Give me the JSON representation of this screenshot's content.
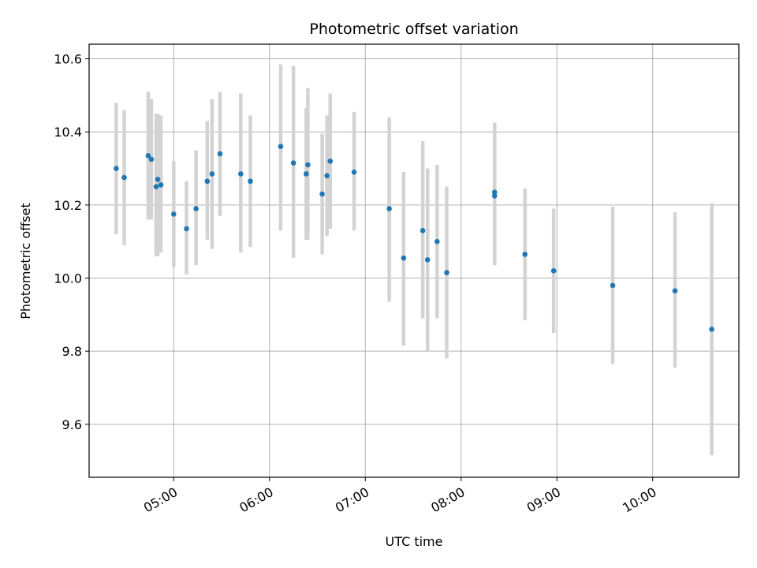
{
  "chart_data": {
    "type": "scatter",
    "title": "Photometric offset variation",
    "xlabel": "UTC time",
    "ylabel": "Photometric offset",
    "xlim": [
      "04:07",
      "10:54"
    ],
    "ylim": [
      9.455,
      10.64
    ],
    "xticks": [
      "05:00",
      "06:00",
      "07:00",
      "08:00",
      "09:00",
      "10:00"
    ],
    "yticks": [
      "9.6",
      "9.8",
      "10.0",
      "10.2",
      "10.4",
      "10.6"
    ],
    "grid": true,
    "point_color": "#1f77b4",
    "errorbar_color": "#d3d3d3",
    "series": [
      {
        "points": [
          {
            "t": "04:24",
            "y": 10.3,
            "lo": 10.12,
            "hi": 10.48
          },
          {
            "t": "04:29",
            "y": 10.275,
            "lo": 10.09,
            "hi": 10.46
          },
          {
            "t": "04:44",
            "y": 10.335,
            "lo": 10.16,
            "hi": 10.51
          },
          {
            "t": "04:46",
            "y": 10.325,
            "lo": 10.16,
            "hi": 10.49
          },
          {
            "t": "04:49",
            "y": 10.25,
            "lo": 10.06,
            "hi": 10.45
          },
          {
            "t": "04:50",
            "y": 10.27,
            "lo": 10.06,
            "hi": 10.45
          },
          {
            "t": "04:52",
            "y": 10.255,
            "lo": 10.07,
            "hi": 10.445
          },
          {
            "t": "05:00",
            "y": 10.175,
            "lo": 10.03,
            "hi": 10.32
          },
          {
            "t": "05:08",
            "y": 10.135,
            "lo": 10.01,
            "hi": 10.265
          },
          {
            "t": "05:14",
            "y": 10.19,
            "lo": 10.035,
            "hi": 10.35
          },
          {
            "t": "05:21",
            "y": 10.265,
            "lo": 10.105,
            "hi": 10.43
          },
          {
            "t": "05:24",
            "y": 10.285,
            "lo": 10.08,
            "hi": 10.49
          },
          {
            "t": "05:29",
            "y": 10.34,
            "lo": 10.17,
            "hi": 10.51
          },
          {
            "t": "05:42",
            "y": 10.285,
            "lo": 10.07,
            "hi": 10.505
          },
          {
            "t": "05:48",
            "y": 10.265,
            "lo": 10.085,
            "hi": 10.445
          },
          {
            "t": "06:07",
            "y": 10.36,
            "lo": 10.13,
            "hi": 10.585
          },
          {
            "t": "06:15",
            "y": 10.315,
            "lo": 10.055,
            "hi": 10.58
          },
          {
            "t": "06:23",
            "y": 10.285,
            "lo": 10.105,
            "hi": 10.465
          },
          {
            "t": "06:24",
            "y": 10.31,
            "lo": 10.105,
            "hi": 10.52
          },
          {
            "t": "06:33",
            "y": 10.23,
            "lo": 10.065,
            "hi": 10.395
          },
          {
            "t": "06:36",
            "y": 10.28,
            "lo": 10.115,
            "hi": 10.445
          },
          {
            "t": "06:38",
            "y": 10.32,
            "lo": 10.135,
            "hi": 10.505
          },
          {
            "t": "06:53",
            "y": 10.29,
            "lo": 10.13,
            "hi": 10.455
          },
          {
            "t": "07:15",
            "y": 10.19,
            "lo": 9.935,
            "hi": 10.44
          },
          {
            "t": "07:24",
            "y": 10.055,
            "lo": 9.815,
            "hi": 10.29
          },
          {
            "t": "07:36",
            "y": 10.13,
            "lo": 9.89,
            "hi": 10.375
          },
          {
            "t": "07:39",
            "y": 10.05,
            "lo": 9.8,
            "hi": 10.3
          },
          {
            "t": "07:45",
            "y": 10.1,
            "lo": 9.89,
            "hi": 10.31
          },
          {
            "t": "07:51",
            "y": 10.015,
            "lo": 9.78,
            "hi": 10.25
          },
          {
            "t": "08:21",
            "y": 10.225,
            "lo": 10.035,
            "hi": 10.42
          },
          {
            "t": "08:21",
            "y": 10.235,
            "lo": 10.045,
            "hi": 10.425
          },
          {
            "t": "08:40",
            "y": 10.065,
            "lo": 9.885,
            "hi": 10.245
          },
          {
            "t": "08:58",
            "y": 10.02,
            "lo": 9.85,
            "hi": 10.19
          },
          {
            "t": "09:35",
            "y": 9.98,
            "lo": 9.765,
            "hi": 10.195
          },
          {
            "t": "10:14",
            "y": 9.965,
            "lo": 9.755,
            "hi": 10.18
          },
          {
            "t": "10:37",
            "y": 9.86,
            "lo": 9.515,
            "hi": 10.205
          }
        ]
      }
    ]
  }
}
